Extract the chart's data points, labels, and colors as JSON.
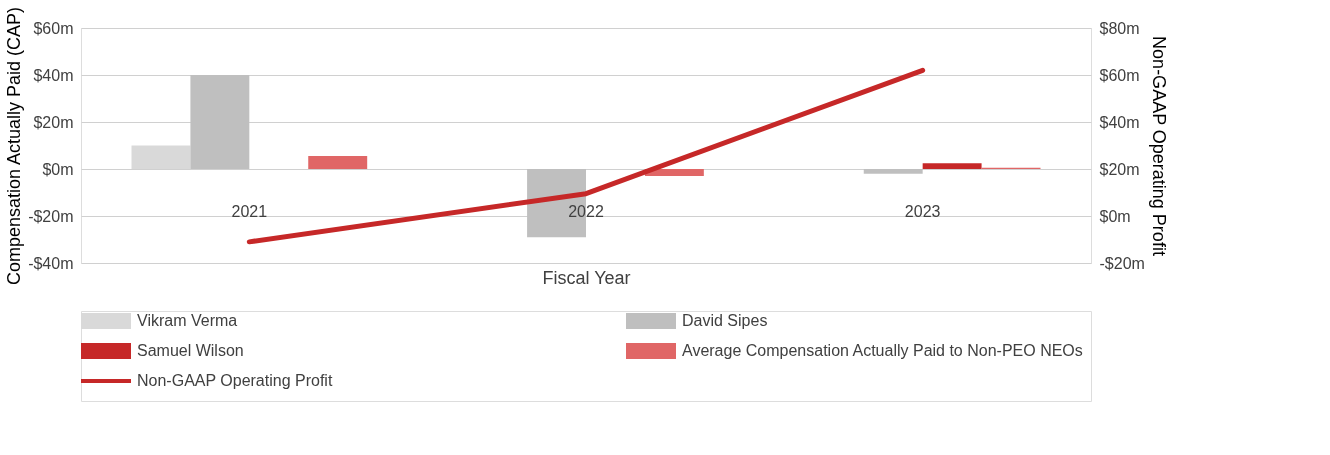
{
  "chart_data": {
    "type": "bar",
    "xlabel": "Fiscal Year",
    "ylabel": "Compensation Actually Paid (CAP)",
    "y2label": "Non-GAAP Operating Profit",
    "categories": [
      "2021",
      "2022",
      "2023"
    ],
    "series": [
      {
        "name": "Vikram Verma",
        "color": "#d9d9d9",
        "values": [
          10,
          null,
          null
        ]
      },
      {
        "name": "David Sipes",
        "color": "#bfbfbf",
        "values": [
          40,
          -29,
          -2
        ]
      },
      {
        "name": "Samuel Wilson",
        "color": "#c62828",
        "values": [
          null,
          null,
          2.5
        ]
      },
      {
        "name": "Average Compensation Actually Paid to Non-PEO NEOs",
        "color": "#e06666",
        "values": [
          5.5,
          -3,
          0.5
        ]
      },
      {
        "name": "Non-GAAP Operating Profit",
        "type": "line",
        "axis": "y2",
        "color": "#c62828",
        "values": [
          -11,
          9.5,
          62
        ]
      }
    ],
    "ylim": [
      -40,
      60
    ],
    "yticks": [
      {
        "value": -40,
        "label": "-$40m"
      },
      {
        "value": -20,
        "label": "-$20m"
      },
      {
        "value": 0,
        "label": "$0m"
      },
      {
        "value": 20,
        "label": "$20m"
      },
      {
        "value": 40,
        "label": "$40m"
      },
      {
        "value": 60,
        "label": "$60m"
      }
    ],
    "y2lim": [
      -20,
      80
    ],
    "y2ticks": [
      {
        "value": -20,
        "label": "-$20m"
      },
      {
        "value": 0,
        "label": "$0m"
      },
      {
        "value": 20,
        "label": "$20m"
      },
      {
        "value": 40,
        "label": "$40m"
      },
      {
        "value": 60,
        "label": "$60m"
      },
      {
        "value": 80,
        "label": "$80m"
      }
    ],
    "grid": "y",
    "legend": "bottom"
  }
}
